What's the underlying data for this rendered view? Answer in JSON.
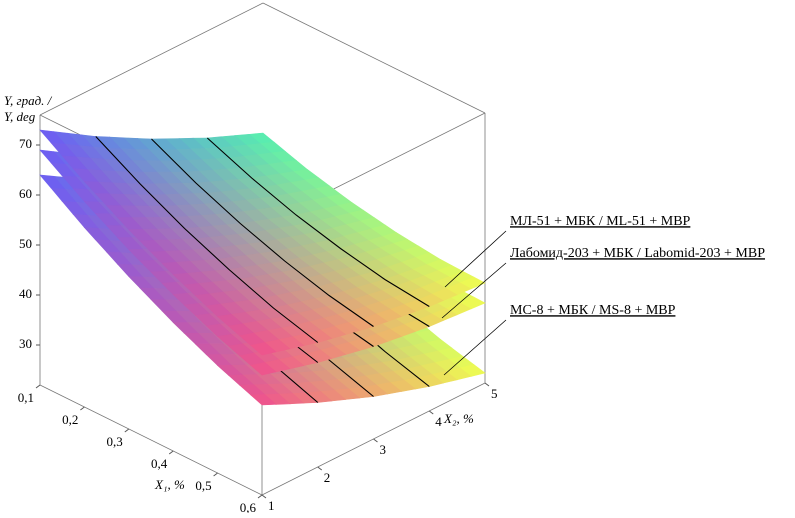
{
  "chart_data": {
    "type": "surface",
    "x1": [
      0.1,
      0.2,
      0.3,
      0.4,
      0.5,
      0.6
    ],
    "x2": [
      1,
      2,
      3,
      4,
      5
    ],
    "xlabel": "X₁, %",
    "ylabel": "X₂, %",
    "zlabel": [
      "Y, град. /",
      "Y, deg"
    ],
    "xlim": [
      0.1,
      0.6
    ],
    "ylim": [
      1,
      5
    ],
    "zlim": [
      22,
      76
    ],
    "xticks": [
      {
        "value": 0.1,
        "label": "0,1"
      },
      {
        "value": 0.2,
        "label": "0,2"
      },
      {
        "value": 0.3,
        "label": "0,3"
      },
      {
        "value": 0.4,
        "label": "0,4"
      },
      {
        "value": 0.5,
        "label": "0,5"
      },
      {
        "value": 0.6,
        "label": "0,6"
      }
    ],
    "yticks": [
      1,
      2,
      3,
      4,
      5
    ],
    "zticks": [
      30,
      40,
      50,
      60,
      70
    ],
    "colormap": [
      "#6b5cf5",
      "#f0508c",
      "#55f0b0",
      "#f0ff50"
    ],
    "series": [
      {
        "name": "МЛ-51 + МБК / ML-51 + MBP",
        "values": [
          [
            73,
            66.1,
            60,
            54.6,
            50
          ],
          [
            67.1,
            61,
            55.6,
            51,
            47.1
          ],
          [
            61.9,
            56.5,
            51.9,
            48,
            44.9
          ],
          [
            57.3,
            52.7,
            48.8,
            45.7,
            43.3
          ],
          [
            53.3,
            49.4,
            46.3,
            43.9,
            42.3
          ],
          [
            50,
            46.9,
            44.5,
            42.9,
            42
          ]
        ]
      },
      {
        "name": "Лабомид-203 + МБК / Labomid-203 + MBP",
        "values": [
          [
            69,
            62.1,
            56,
            50.6,
            46
          ],
          [
            63.1,
            57,
            51.6,
            47,
            43.1
          ],
          [
            57.9,
            52.5,
            47.9,
            44,
            40.9
          ],
          [
            53.3,
            48.7,
            44.8,
            41.7,
            39.3
          ],
          [
            49.3,
            45.4,
            42.3,
            39.9,
            38.3
          ],
          [
            46,
            42.9,
            40.5,
            38.9,
            38
          ]
        ]
      },
      {
        "name": "МС-8 + МБК / MS-8 + MBP",
        "values": [
          [
            64,
            57.4,
            51.5,
            46.4,
            42
          ],
          [
            57.9,
            51.6,
            46,
            41.2,
            37.1
          ],
          [
            52.5,
            46.5,
            41.2,
            36.7,
            32.9
          ],
          [
            47.7,
            42,
            37,
            32.8,
            29.3
          ],
          [
            43.5,
            38.1,
            33.4,
            29.5,
            26.3
          ],
          [
            40,
            34.9,
            30.5,
            26.9,
            24
          ]
        ]
      }
    ]
  }
}
